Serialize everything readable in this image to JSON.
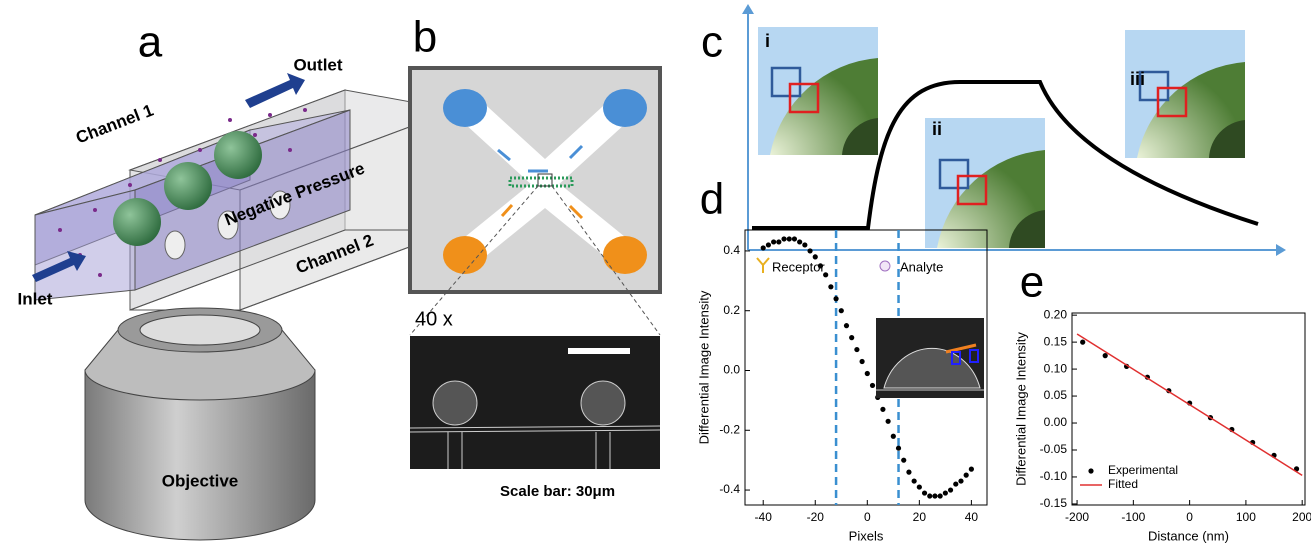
{
  "panels": {
    "a": {
      "label": "a",
      "outlet": "Outlet",
      "channel1": "Channel 1",
      "pressure": "Negative Pressure",
      "channel2": "Channel 2",
      "inlet": "Inlet",
      "objective": "Objective"
    },
    "b": {
      "label": "b",
      "magnification": "40 x",
      "scale": "Scale bar: 30μm"
    },
    "c": {
      "label": "c",
      "inset1": "i",
      "inset2": "ii",
      "inset3": "iii",
      "receptor": "Receptor",
      "analyte": "Analyte"
    }
  },
  "chart_data": [
    {
      "type": "scatter",
      "label": "d",
      "xlabel": "Pixels",
      "ylabel": "Differential Image Intensity",
      "x": [
        -40,
        -38,
        -36,
        -34,
        -32,
        -30,
        -28,
        -26,
        -24,
        -22,
        -20,
        -18,
        -16,
        -14,
        -12,
        -10,
        -8,
        -6,
        -4,
        -2,
        0,
        2,
        4,
        6,
        8,
        10,
        12,
        14,
        16,
        18,
        20,
        22,
        24,
        26,
        28,
        30,
        32,
        34,
        36,
        38,
        40
      ],
      "values": [
        0.41,
        0.42,
        0.43,
        0.43,
        0.44,
        0.44,
        0.44,
        0.43,
        0.42,
        0.4,
        0.38,
        0.35,
        0.32,
        0.28,
        0.24,
        0.2,
        0.15,
        0.11,
        0.07,
        0.03,
        -0.01,
        -0.05,
        -0.09,
        -0.13,
        -0.17,
        -0.22,
        -0.26,
        -0.3,
        -0.34,
        -0.37,
        -0.39,
        -0.41,
        -0.42,
        -0.42,
        -0.42,
        -0.41,
        -0.4,
        -0.38,
        -0.37,
        -0.35,
        -0.33
      ],
      "color": "#000000",
      "vlines": [
        -12,
        12
      ],
      "vline_color": "#3a8fd0",
      "xlim": [
        -47,
        46
      ],
      "xticks": [
        -40,
        -20,
        0,
        20,
        40
      ],
      "ylim": [
        -0.45,
        0.47
      ],
      "yticks": [
        -0.4,
        -0.2,
        {
          "value": 0,
          "label": "0.0"
        },
        0.2,
        0.4
      ]
    },
    {
      "type": "scatter",
      "label": "e",
      "xlabel": "Distance (nm)",
      "ylabel": "Differential Image Intensity",
      "series": [
        {
          "name": "Experimental",
          "color": "#000000",
          "mode": "markers",
          "x": [
            -190,
            -150,
            -112,
            -75,
            -37,
            0,
            37,
            75,
            112,
            150,
            190
          ],
          "values": [
            0.15,
            0.125,
            0.105,
            0.085,
            0.06,
            0.037,
            0.01,
            -0.012,
            -0.036,
            -0.06,
            -0.085
          ]
        },
        {
          "name": "Fitted",
          "color": "#e03030",
          "mode": "line",
          "x": [
            -200,
            200
          ],
          "values": [
            0.165,
            -0.097
          ]
        }
      ],
      "legend": "lower left",
      "xlim": [
        -209,
        205
      ],
      "xticks": [
        -200,
        -100,
        0,
        100,
        200
      ],
      "ylim": [
        -0.152,
        0.204
      ],
      "yticks": [
        -0.15,
        {
          "value": -0.1,
          "label": "-0.10"
        },
        -0.05,
        {
          "value": 0,
          "label": "0.00"
        },
        0.05,
        {
          "value": 0.1,
          "label": "0.10"
        },
        0.15,
        {
          "value": 0.2,
          "label": "0.20"
        }
      ]
    }
  ]
}
